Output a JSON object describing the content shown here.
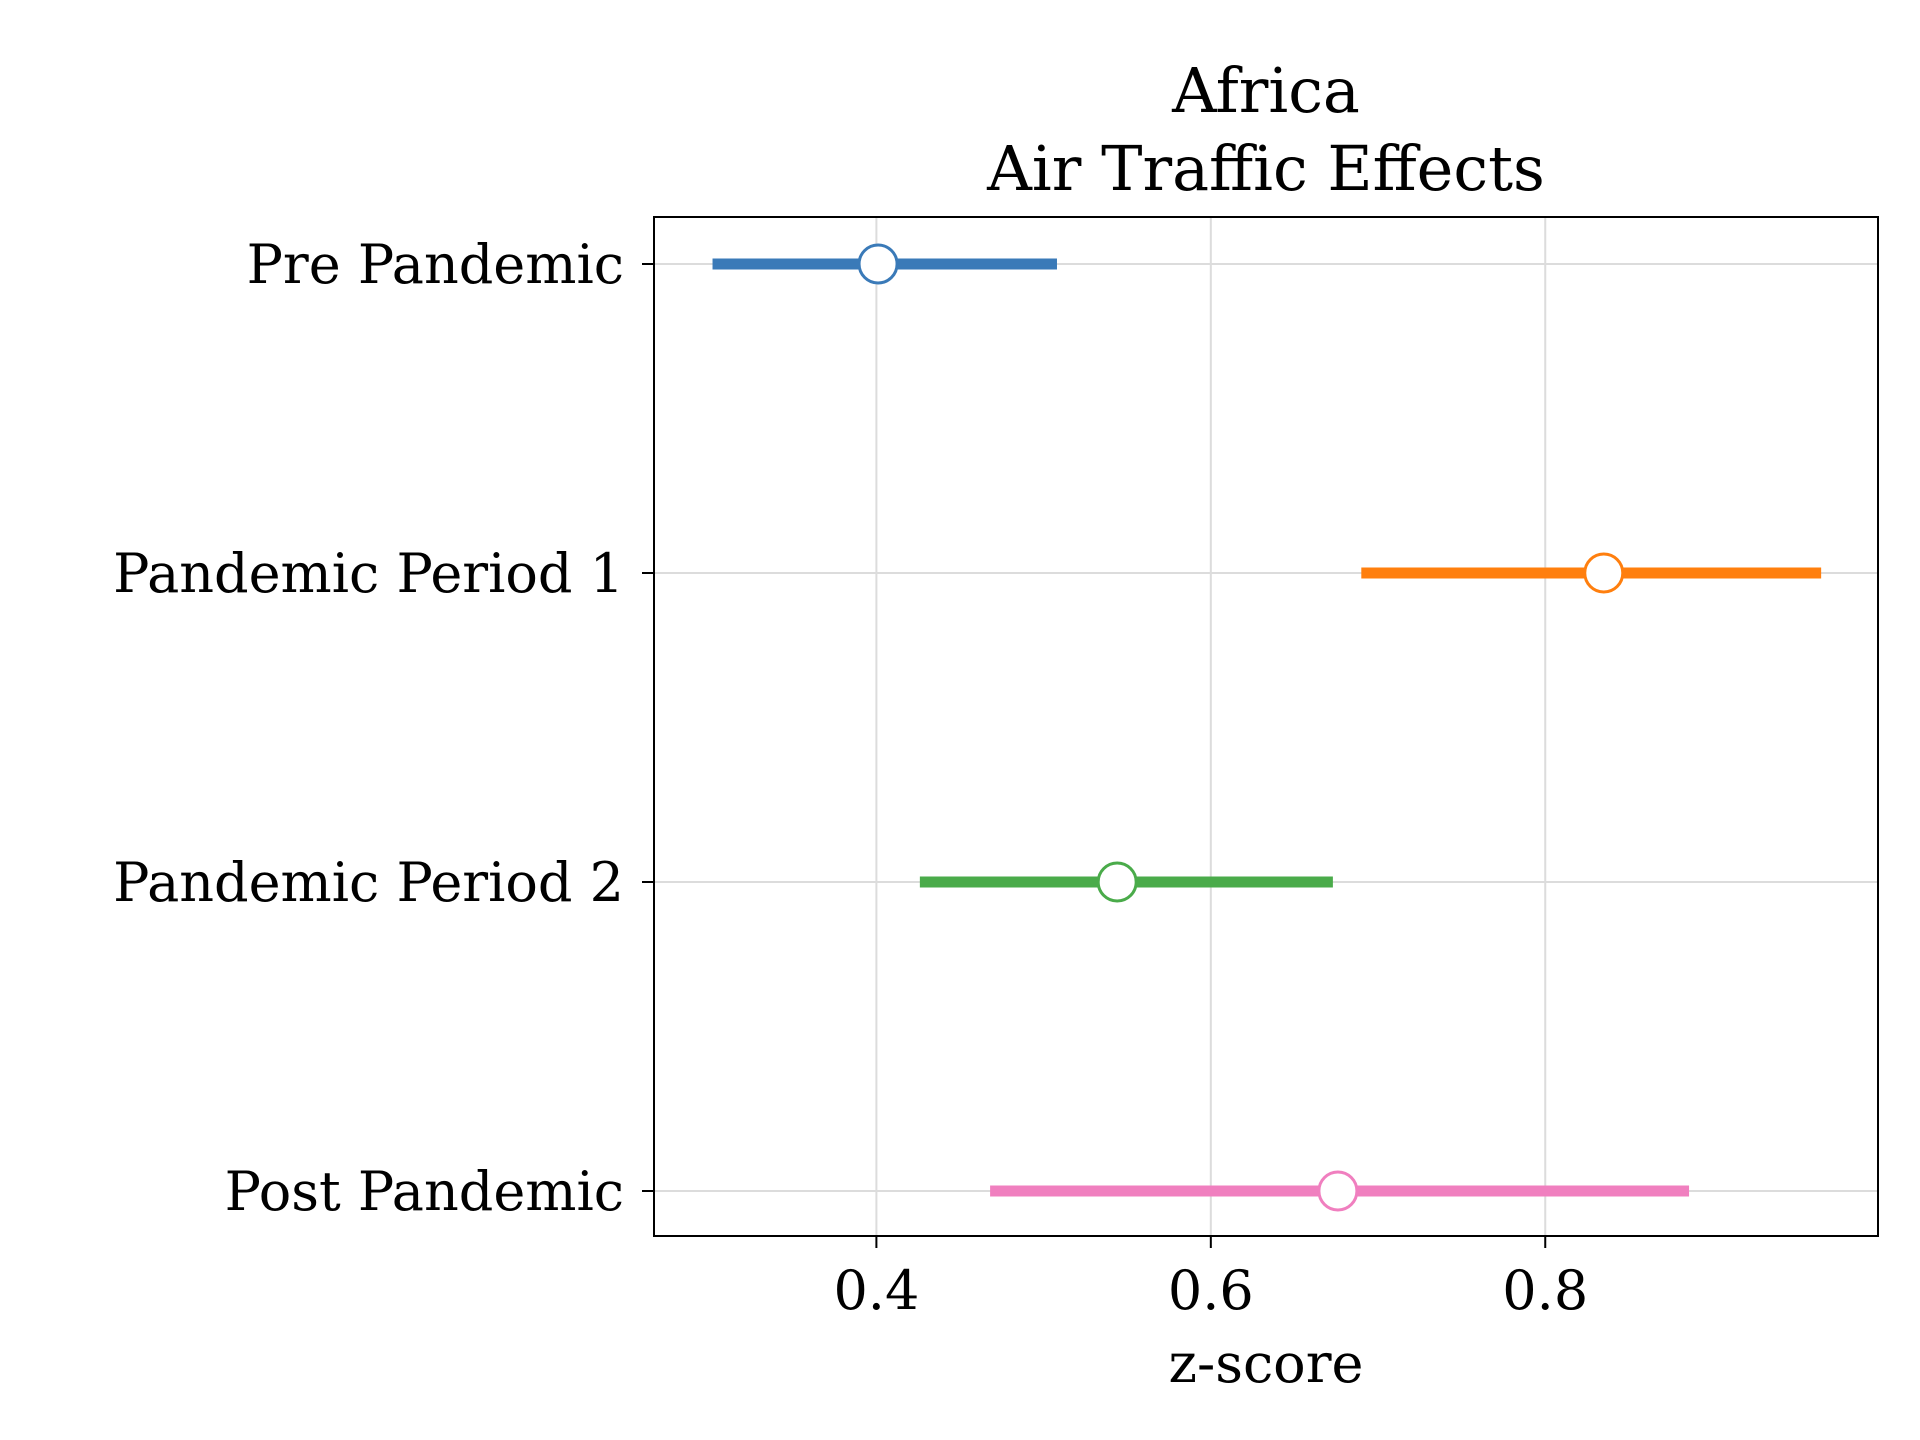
{
  "chart_data": {
    "type": "errorbar",
    "title_lines": [
      "Africa",
      "Air Traffic Effects"
    ],
    "xlabel": "z-score",
    "ylabel": "",
    "xlim": [
      0.267,
      0.999
    ],
    "x_ticks": [
      0.4,
      0.6,
      0.8
    ],
    "x_tick_labels": [
      "0.4",
      "0.6",
      "0.8"
    ],
    "grid": true,
    "categories": [
      "Pre Pandemic",
      "Pandemic Period 1",
      "Pandemic Period 2",
      "Post Pandemic"
    ],
    "points": [
      {
        "label": "Pre Pandemic",
        "estimate": 0.401,
        "lower": 0.302,
        "upper": 0.508,
        "color": "#3a7ab8"
      },
      {
        "label": "Pandemic Period 1",
        "estimate": 0.835,
        "lower": 0.69,
        "upper": 0.965,
        "color": "#ff7f0e"
      },
      {
        "label": "Pandemic Period 2",
        "estimate": 0.544,
        "lower": 0.426,
        "upper": 0.673,
        "color": "#4aab4a"
      },
      {
        "label": "Post Pandemic",
        "estimate": 0.676,
        "lower": 0.468,
        "upper": 0.886,
        "color": "#f07fbf"
      }
    ]
  }
}
